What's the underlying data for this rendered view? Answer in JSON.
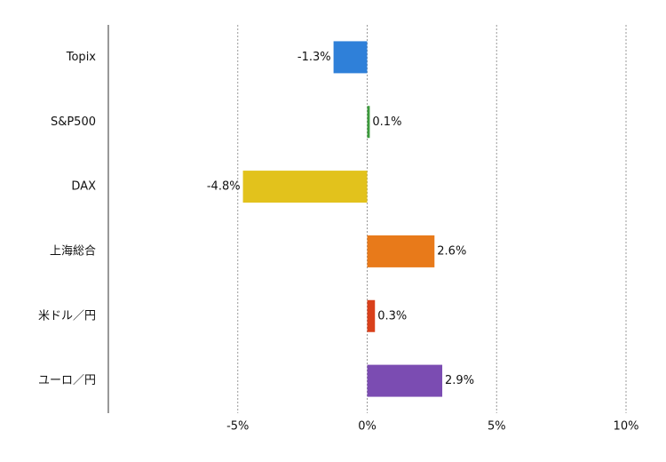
{
  "chart_data": {
    "type": "bar",
    "orientation": "horizontal",
    "categories": [
      "Topix",
      "S&P500",
      "DAX",
      "上海総合",
      "米ドル／円",
      "ユーロ／円"
    ],
    "values": [
      -1.3,
      0.1,
      -4.8,
      2.6,
      0.3,
      2.9
    ],
    "value_labels": [
      "-1.3%",
      "0.1%",
      "-4.8%",
      "2.6%",
      "0.3%",
      "2.9%"
    ],
    "colors": [
      "#2f80d9",
      "#3c9b3c",
      "#e2c21c",
      "#e87a1a",
      "#d9401b",
      "#7b4cb2"
    ],
    "xlim": [
      -10,
      10
    ],
    "xticks": [
      {
        "value": -5,
        "label": "-5%"
      },
      {
        "value": 0,
        "label": "0%"
      },
      {
        "value": 5,
        "label": "5%"
      },
      {
        "value": 10,
        "label": "10%"
      }
    ],
    "grid": true
  }
}
